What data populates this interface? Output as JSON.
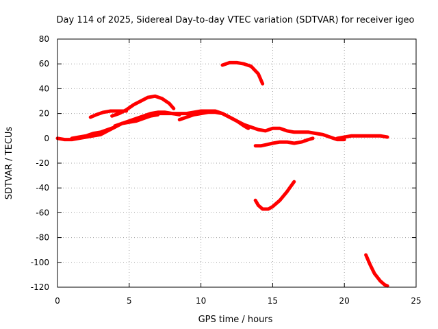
{
  "chart_data": {
    "type": "line",
    "title": "Day 114 of 2025, Sidereal Day-to-day VTEC variation (SDTVAR) for receiver igeo",
    "xlabel": "GPS time / hours",
    "ylabel": "SDTVAR / TECUs",
    "xlim": [
      0,
      25
    ],
    "ylim": [
      -120,
      80
    ],
    "xticks": [
      0,
      5,
      10,
      15,
      20,
      25
    ],
    "xtick_labels": [
      "0",
      "5",
      "10",
      "15",
      "20",
      "25"
    ],
    "yticks": [
      -120,
      -100,
      -80,
      -60,
      -40,
      -20,
      0,
      20,
      40,
      60,
      80
    ],
    "ytick_labels": [
      "-120",
      "-100",
      "-80",
      "-60",
      "-40",
      "-20",
      "0",
      "20",
      "40",
      "60",
      "80"
    ],
    "grid": true,
    "color": "#ff0000",
    "series": [
      {
        "name": "s1",
        "x": [
          0.0,
          0.5,
          1.0,
          1.5,
          2.0,
          2.5,
          3.0,
          3.5,
          4.0,
          4.5,
          5.0,
          5.5,
          6.0,
          6.5,
          7.0,
          7.5,
          8.0,
          8.5
        ],
        "y": [
          0,
          -1,
          -1,
          0,
          1,
          2,
          3,
          6,
          9,
          12,
          14,
          16,
          18,
          20,
          21,
          21,
          20,
          19
        ]
      },
      {
        "name": "s2",
        "x": [
          2.3,
          2.7,
          3.2,
          3.7,
          4.2,
          4.8
        ],
        "y": [
          17,
          19,
          21,
          22,
          22,
          22
        ]
      },
      {
        "name": "s3",
        "x": [
          3.8,
          4.3,
          4.8,
          5.3,
          5.8,
          6.3,
          6.8,
          7.3,
          7.8,
          8.1
        ],
        "y": [
          18,
          20,
          23,
          27,
          30,
          33,
          34,
          32,
          28,
          24
        ]
      },
      {
        "name": "s4",
        "x": [
          1.0,
          1.5,
          2.0,
          2.5,
          3.0,
          3.5,
          4.0
        ],
        "y": [
          0,
          1,
          2,
          4,
          5,
          7,
          9
        ]
      },
      {
        "name": "s5",
        "x": [
          4.0,
          4.5,
          5.0,
          5.5,
          6.0,
          6.5,
          7.0
        ],
        "y": [
          10,
          12,
          13,
          14,
          16,
          18,
          19
        ]
      },
      {
        "name": "s6",
        "x": [
          7.0,
          7.5,
          8.0,
          8.5,
          9.0,
          9.5,
          10.0,
          10.5,
          11.0,
          11.5,
          12.0,
          12.5,
          13.0,
          13.5,
          14.0,
          14.5,
          15.0,
          15.5,
          16.0,
          16.5,
          17.0,
          17.5,
          18.0,
          18.5,
          19.0,
          19.5,
          20.0
        ],
        "y": [
          20,
          20,
          20,
          20,
          20,
          21,
          22,
          22,
          22,
          20,
          17,
          14,
          11,
          9,
          7,
          6,
          8,
          8,
          6,
          5,
          5,
          5,
          4,
          3,
          1,
          -1,
          -1
        ]
      },
      {
        "name": "s7",
        "x": [
          8.5,
          9.0,
          9.5,
          10.0,
          10.5,
          11.0,
          11.5,
          12.0,
          12.5,
          13.0,
          13.3
        ],
        "y": [
          15,
          17,
          19,
          20,
          21,
          21,
          20,
          17,
          14,
          10,
          8
        ]
      },
      {
        "name": "s8",
        "x": [
          11.5,
          12.0,
          12.5,
          13.0,
          13.5,
          14.0,
          14.3
        ],
        "y": [
          59,
          61,
          61,
          60,
          58,
          52,
          44
        ]
      },
      {
        "name": "s9",
        "x": [
          13.8,
          14.2,
          14.6,
          15.0,
          15.5,
          16.0,
          16.5,
          17.0,
          17.5,
          17.8
        ],
        "y": [
          -6,
          -6,
          -5,
          -4,
          -3,
          -3,
          -4,
          -3,
          -1,
          0
        ]
      },
      {
        "name": "s10",
        "x": [
          13.8,
          14.0,
          14.3,
          14.7,
          15.0,
          15.5,
          16.0,
          16.5
        ],
        "y": [
          -50,
          -54,
          -57,
          -57,
          -55,
          -50,
          -43,
          -35
        ]
      },
      {
        "name": "s11",
        "x": [
          19.5,
          20.0,
          20.5,
          21.0,
          21.5,
          22.0,
          22.5,
          23.0
        ],
        "y": [
          0,
          1,
          2,
          2,
          2,
          2,
          2,
          1
        ]
      },
      {
        "name": "s12",
        "x": [
          21.5,
          21.8,
          22.1,
          22.5,
          22.8,
          23.0
        ],
        "y": [
          -94,
          -102,
          -109,
          -115,
          -118,
          -119
        ]
      }
    ]
  }
}
